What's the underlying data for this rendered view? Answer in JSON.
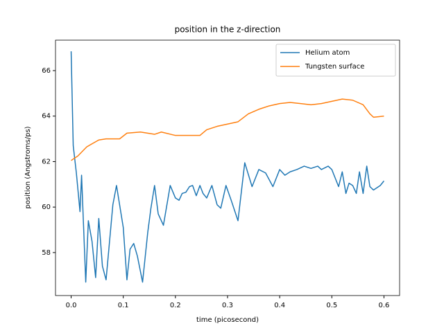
{
  "chart_data": {
    "type": "line",
    "title": "position in the z-direction",
    "x_label": "time (picosecond)",
    "y_label": "position (Angstroms/ps)",
    "xlim": [
      -0.03,
      0.63
    ],
    "ylim": [
      56.11,
      67.34
    ],
    "xticks": [
      {
        "value": 0,
        "label": "0.0"
      },
      0.1,
      0.2,
      0.3,
      0.4,
      0.5,
      0.6
    ],
    "yticks": [
      58,
      60,
      62,
      64,
      66
    ],
    "legend": "upper right",
    "series": [
      {
        "name": "Helium atom",
        "color": "#1f77b4",
        "x": [
          0,
          0.004,
          0.01,
          0.017,
          0.02,
          0.028,
          0.033,
          0.04,
          0.047,
          0.053,
          0.06,
          0.067,
          0.08,
          0.087,
          0.1,
          0.107,
          0.113,
          0.12,
          0.127,
          0.137,
          0.147,
          0.153,
          0.16,
          0.167,
          0.177,
          0.19,
          0.2,
          0.207,
          0.213,
          0.22,
          0.227,
          0.233,
          0.24,
          0.247,
          0.253,
          0.26,
          0.27,
          0.28,
          0.287,
          0.297,
          0.307,
          0.32,
          0.333,
          0.347,
          0.36,
          0.373,
          0.387,
          0.4,
          0.41,
          0.42,
          0.433,
          0.447,
          0.46,
          0.473,
          0.48,
          0.493,
          0.5,
          0.513,
          0.52,
          0.527,
          0.533,
          0.54,
          0.547,
          0.553,
          0.56,
          0.567,
          0.573,
          0.58,
          0.593,
          0.6
        ],
        "values": [
          66.85,
          62.7,
          61.5,
          59.8,
          61.4,
          56.7,
          59.4,
          58.5,
          56.9,
          59.5,
          57.4,
          56.8,
          60.1,
          60.95,
          59.1,
          56.8,
          58.15,
          58.4,
          57.85,
          56.7,
          58.9,
          59.95,
          60.95,
          59.7,
          59.2,
          60.95,
          60.4,
          60.3,
          60.6,
          60.65,
          60.9,
          60.95,
          60.5,
          60.95,
          60.6,
          60.4,
          60.95,
          60.1,
          59.95,
          60.95,
          60.3,
          59.4,
          61.95,
          60.9,
          61.65,
          61.5,
          60.9,
          61.65,
          61.4,
          61.55,
          61.65,
          61.8,
          61.7,
          61.8,
          61.65,
          61.8,
          61.65,
          60.9,
          61.55,
          60.6,
          61.05,
          60.95,
          60.6,
          61.55,
          60.6,
          61.8,
          60.9,
          60.75,
          60.95,
          61.15
        ]
      },
      {
        "name": "Tungsten surface",
        "color": "#ff7f0e",
        "x": [
          0,
          0.013,
          0.03,
          0.053,
          0.067,
          0.093,
          0.107,
          0.133,
          0.16,
          0.173,
          0.2,
          0.22,
          0.247,
          0.26,
          0.28,
          0.3,
          0.32,
          0.34,
          0.36,
          0.38,
          0.4,
          0.42,
          0.44,
          0.46,
          0.48,
          0.5,
          0.52,
          0.54,
          0.56,
          0.573,
          0.58,
          0.6
        ],
        "values": [
          62.05,
          62.25,
          62.65,
          62.95,
          63.0,
          63.0,
          63.25,
          63.3,
          63.2,
          63.3,
          63.15,
          63.15,
          63.15,
          63.4,
          63.55,
          63.65,
          63.75,
          64.1,
          64.3,
          64.45,
          64.55,
          64.6,
          64.55,
          64.5,
          64.55,
          64.65,
          64.75,
          64.7,
          64.5,
          64.1,
          63.95,
          64.0
        ]
      }
    ]
  }
}
